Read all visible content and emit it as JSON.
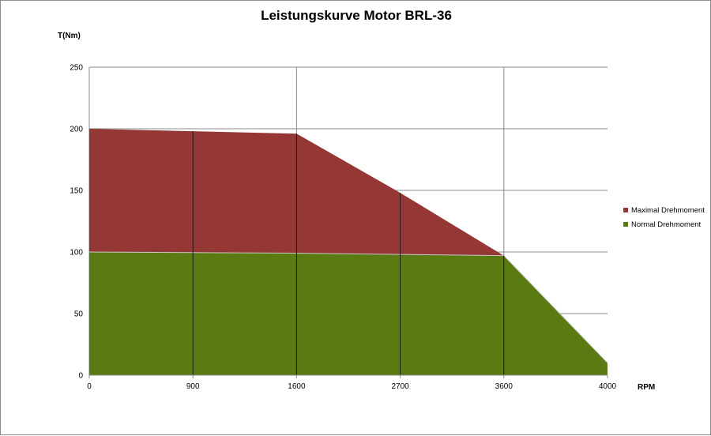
{
  "chart_data": {
    "type": "area",
    "title": "Leistungskurve Motor BRL-36",
    "ylabel": "T(Nm)",
    "xlabel": "RPM",
    "categories": [
      "0",
      "900",
      "1600",
      "2700",
      "3600",
      "4000"
    ],
    "ylim": [
      0,
      250
    ],
    "yticks": [
      0,
      50,
      100,
      150,
      200,
      250
    ],
    "grid": true,
    "legend_position": "right",
    "series": [
      {
        "name": "Maximal Drehmoment",
        "color": "#953735",
        "values": [
          200,
          198,
          196,
          148,
          97,
          null
        ]
      },
      {
        "name": "Normal Drehmoment",
        "color": "#5a7a12",
        "values": [
          100,
          99.5,
          99,
          98,
          97,
          10
        ]
      }
    ]
  }
}
